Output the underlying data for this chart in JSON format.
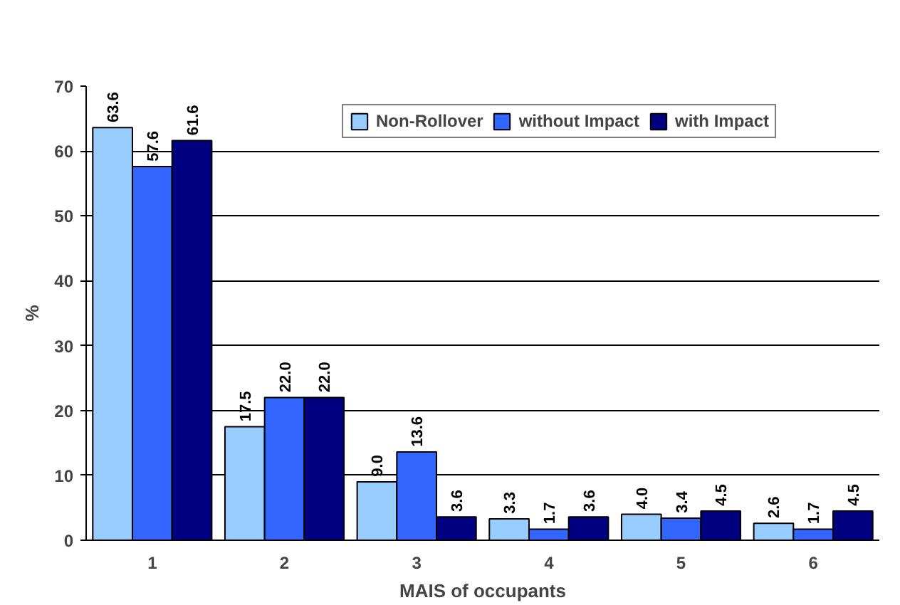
{
  "chart_data": {
    "type": "bar",
    "xlabel": "MAIS of occupants",
    "ylabel": "%",
    "categories": [
      "1",
      "2",
      "3",
      "4",
      "5",
      "6"
    ],
    "series": [
      {
        "name": "Non-Rollover",
        "color": "#99ccff",
        "values": [
          63.6,
          17.5,
          9.0,
          3.3,
          4.0,
          2.6
        ],
        "value_labels": [
          "63.6",
          "17.5",
          "9.0",
          "3.3",
          "4.0",
          "2.6"
        ]
      },
      {
        "name": "without Impact",
        "color": "#3366ff",
        "values": [
          57.6,
          22.0,
          13.6,
          1.7,
          3.4,
          1.7
        ],
        "value_labels": [
          "57.6",
          "22.0",
          "13.6",
          "1.7",
          "3.4",
          "1.7"
        ]
      },
      {
        "name": "with Impact",
        "color": "#000080",
        "values": [
          61.6,
          22.0,
          3.6,
          3.6,
          4.5,
          4.5
        ],
        "value_labels": [
          "61.6",
          "22.0",
          "3.6",
          "3.6",
          "4.5",
          "4.5"
        ]
      }
    ],
    "ylim": [
      0,
      70
    ],
    "yticks": [
      0,
      10,
      20,
      30,
      40,
      50,
      60,
      70
    ],
    "grid": "y",
    "legend": "top"
  }
}
